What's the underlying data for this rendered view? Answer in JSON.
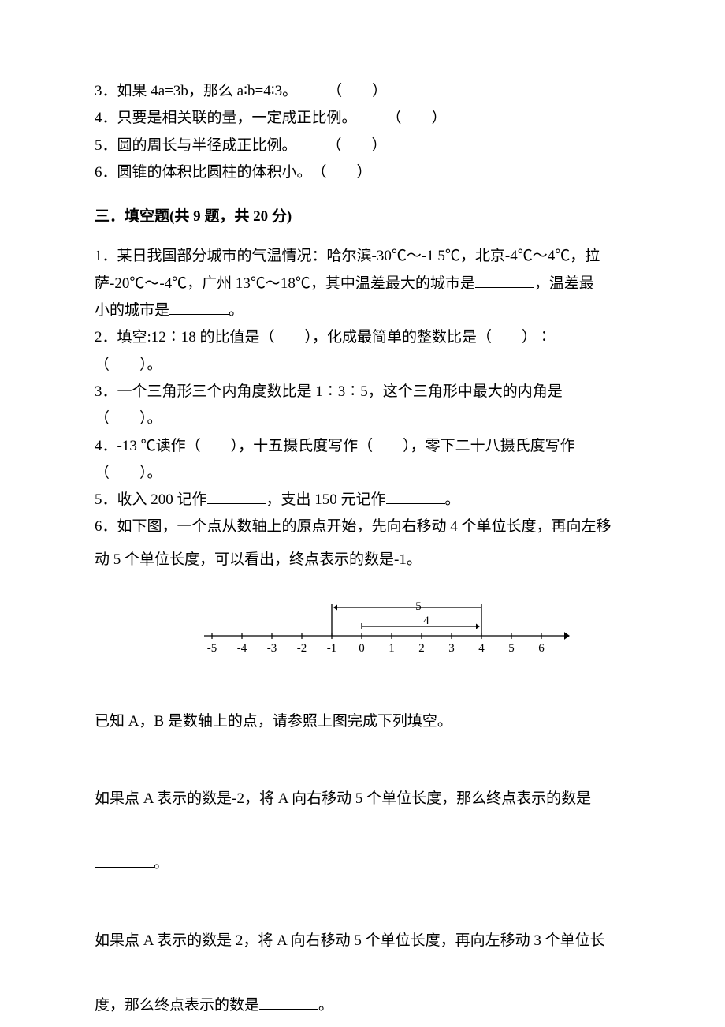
{
  "topQuestions": {
    "q3": "3．如果 4a=3b，那么 a∶b=4∶3。　　　（　　）",
    "q4": "4．只要是相关联的量，一定成正比例。　　　（　　）",
    "q5": "5．圆的周长与半径成正比例。　　　（　　）",
    "q6": "6．圆锥的体积比圆柱的体积小。　（　　）"
  },
  "section3": {
    "header": "三．填空题(共 9 题，共 20 分)",
    "q1_l1": "1．某日我国部分城市的气温情况：哈尔滨-30℃～-1 5℃，北京-4℃～4℃，拉",
    "q1_l2_a": "萨-20℃～-4℃，广州 13℃～18℃，其中温差最大的城市是",
    "q1_l2_b": "，温差最",
    "q1_l3_a": "小的城市是",
    "q1_l3_b": "。",
    "q2_l1": "2．填空:12∶18 的比值是（　　），化成最简单的整数比是（　　）∶",
    "q2_l2": "（　　）。",
    "q3_l1": "3．一个三角形三个内角度数比是 1∶3∶5，这个三角形中最大的内角是",
    "q3_l2": "（　　）。",
    "q4_l1": "4．-13 ℃读作（　　），十五摄氏度写作（　　），零下二十八摄氏度写作",
    "q4_l2": "（　　）。",
    "q5_a": "5．收入 200 记作",
    "q5_b": "，支出 150 元记作",
    "q5_c": "。",
    "q6_l1": "6．如下图，一个点从数轴上的原点开始，先向右移动 4 个单位长度，再向左移",
    "q6_l2": "动 5 个单位长度，可以看出，终点表示的数是-1。",
    "q6_known": "已知 A，B 是数轴上的点，请参照上图完成下列填空。",
    "q6_p1": "如果点 A 表示的数是-2，将 A 向右移动 5 个单位长度，那么终点表示的数是",
    "q6_p1_end": "。",
    "q6_p2_l1": "如果点 A 表示的数是 2，将 A 向右移动 5 个单位长度，再向左移动 3 个单位长",
    "q6_p2_l2a": "度，那么终点表示的数是",
    "q6_p2_l2b": "。"
  },
  "numberLine": {
    "ticks": [
      "-5",
      "-4",
      "-3",
      "-2",
      "-1",
      "0",
      "1",
      "2",
      "3",
      "4",
      "5",
      "6"
    ],
    "topLabel": "5",
    "innerLabel": "4",
    "tickSpacing": 38,
    "startX": 14,
    "axisY": 48,
    "stroke": "#000000"
  }
}
